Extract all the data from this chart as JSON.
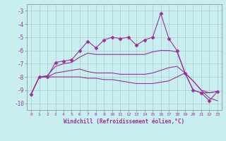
{
  "xlabel": "Windchill (Refroidissement éolien,°C)",
  "background_color": "#c8eef0",
  "line_color": "#993399",
  "x_values": [
    0,
    1,
    2,
    3,
    4,
    5,
    6,
    7,
    8,
    9,
    10,
    11,
    12,
    13,
    14,
    15,
    16,
    17,
    18,
    19,
    20,
    21,
    22,
    23
  ],
  "line1": [
    -9.3,
    -8.0,
    -8.0,
    -6.9,
    -6.8,
    -6.7,
    -6.0,
    -5.3,
    -5.8,
    -5.2,
    -5.0,
    -5.1,
    -5.0,
    -5.6,
    -5.2,
    -5.0,
    -3.2,
    -5.1,
    -6.0,
    -7.7,
    -9.0,
    -9.2,
    -9.8,
    -9.1
  ],
  "line2": [
    -9.3,
    -8.0,
    -7.9,
    -7.2,
    -7.0,
    -6.9,
    -6.5,
    -6.2,
    -6.3,
    -6.3,
    -6.3,
    -6.3,
    -6.3,
    -6.3,
    -6.3,
    -6.1,
    -6.0,
    -6.0,
    -6.1,
    -7.7,
    -9.0,
    -9.2,
    -9.2,
    -9.1
  ],
  "line3": [
    -9.3,
    -8.0,
    -8.0,
    -7.7,
    -7.6,
    -7.5,
    -7.4,
    -7.6,
    -7.7,
    -7.7,
    -7.7,
    -7.8,
    -7.8,
    -7.8,
    -7.8,
    -7.7,
    -7.5,
    -7.3,
    -7.2,
    -7.7,
    -8.3,
    -9.0,
    -9.2,
    -9.1
  ],
  "line4": [
    -9.3,
    -8.0,
    -8.0,
    -8.0,
    -8.0,
    -8.0,
    -8.0,
    -8.1,
    -8.1,
    -8.2,
    -8.2,
    -8.3,
    -8.4,
    -8.5,
    -8.5,
    -8.5,
    -8.4,
    -8.3,
    -8.0,
    -7.7,
    -8.3,
    -9.0,
    -9.6,
    -9.8
  ],
  "ylim": [
    -10.5,
    -2.5
  ],
  "xlim": [
    -0.5,
    23.5
  ],
  "yticks": [
    -10,
    -9,
    -8,
    -7,
    -6,
    -5,
    -4,
    -3
  ],
  "xtick_labels": [
    "0",
    "1",
    "2",
    "3",
    "4",
    "5",
    "6",
    "7",
    "8",
    "9",
    "10",
    "11",
    "12",
    "13",
    "14",
    "15",
    "16",
    "17",
    "18",
    "19",
    "20",
    "21",
    "22",
    "23"
  ],
  "grid_color": "#b0c8c8",
  "marker": "D",
  "marker_size": 2.5,
  "linewidth": 0.8
}
